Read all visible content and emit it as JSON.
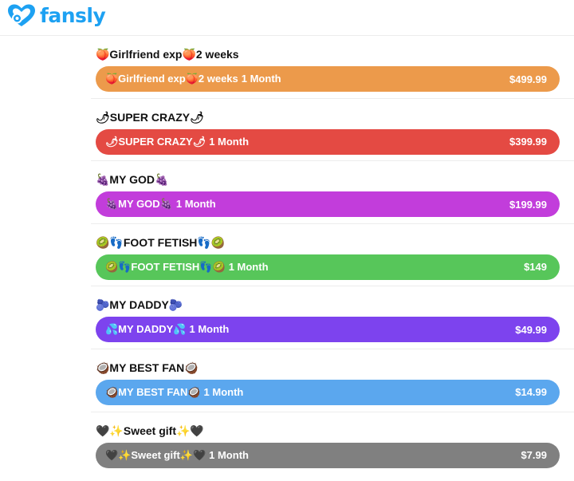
{
  "brand": {
    "name": "fansly",
    "color": "#1da1f2"
  },
  "tiers": [
    {
      "title": "🍑Girlfriend exp🍑2 weeks",
      "button_label": "🍑Girlfriend exp🍑2 weeks",
      "duration": "1 Month",
      "price": "$499.99",
      "color": "#ec9a4b"
    },
    {
      "title": "🌶SUPER CRAZY🌶",
      "button_label": "🌶SUPER CRAZY🌶",
      "duration": "1 Month",
      "price": "$399.99",
      "color": "#e44a43"
    },
    {
      "title": "🍇MY GOD🍇",
      "button_label": "🍇MY GOD🍇",
      "duration": "1 Month",
      "price": "$199.99",
      "color": "#c23ddb"
    },
    {
      "title": "🥝👣FOOT FETISH👣🥝",
      "button_label": "🥝👣FOOT FETISH👣🥝",
      "duration": "1 Month",
      "price": "$149",
      "color": "#57c65a"
    },
    {
      "title": "🫐MY DADDY🫐",
      "button_label": "💦MY DADDY💦",
      "duration": "1 Month",
      "price": "$49.99",
      "color": "#7d43ee"
    },
    {
      "title": "🥥MY BEST FAN🥥",
      "button_label": "🥥MY BEST FAN🥥",
      "duration": "1 Month",
      "price": "$14.99",
      "color": "#5ba7ee"
    },
    {
      "title": "🖤✨Sweet gift✨🖤",
      "button_label": "🖤✨Sweet gift✨🖤",
      "duration": "1 Month",
      "price": "$7.99",
      "color": "#808080"
    }
  ]
}
